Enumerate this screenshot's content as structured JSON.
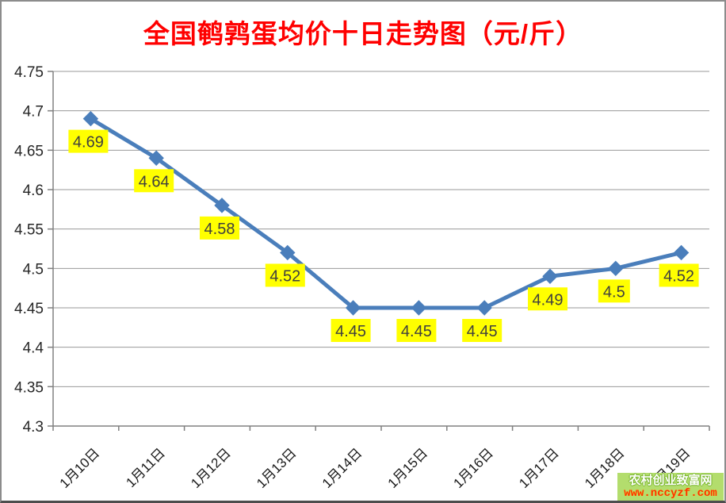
{
  "title": "全国鹌鹑蛋均价十日走势图（元/斤）",
  "title_color": "#ff0000",
  "watermark": {
    "line1": "农村创业致富网",
    "line2": "www.nccyzf.com",
    "bg_color": "#b3dd6d",
    "line2_color": "#ff2f00"
  },
  "chart_data": {
    "type": "line",
    "title": "全国鹌鹑蛋均价十日走势图（元/斤）",
    "categories": [
      "1月10日",
      "1月11日",
      "1月12日",
      "1月13日",
      "1月14日",
      "1月15日",
      "1月16日",
      "1月17日",
      "1月18日",
      "1月19日"
    ],
    "values": [
      4.69,
      4.64,
      4.58,
      4.52,
      4.45,
      4.45,
      4.45,
      4.49,
      4.5,
      4.52
    ],
    "point_labels": [
      "4.69",
      "4.64",
      "4.58",
      "4.52",
      "4.45",
      "4.45",
      "4.45",
      "4.49",
      "4.5",
      "4.52"
    ],
    "xlabel": "",
    "ylabel": "",
    "ylim": [
      4.3,
      4.75
    ],
    "ytick_step": 0.05,
    "yticks": [
      "4.75",
      "4.7",
      "4.65",
      "4.6",
      "4.55",
      "4.5",
      "4.45",
      "4.4",
      "4.35",
      "4.3"
    ],
    "grid": true,
    "legend": "none",
    "line_color": "#4a7ebb",
    "marker": "diamond",
    "marker_color": "#4a7ebb",
    "grid_color": "#9a9a9a",
    "axis_color": "#808080",
    "label_bg": "#ffff00",
    "label_text_color": "#3f3f3f"
  }
}
